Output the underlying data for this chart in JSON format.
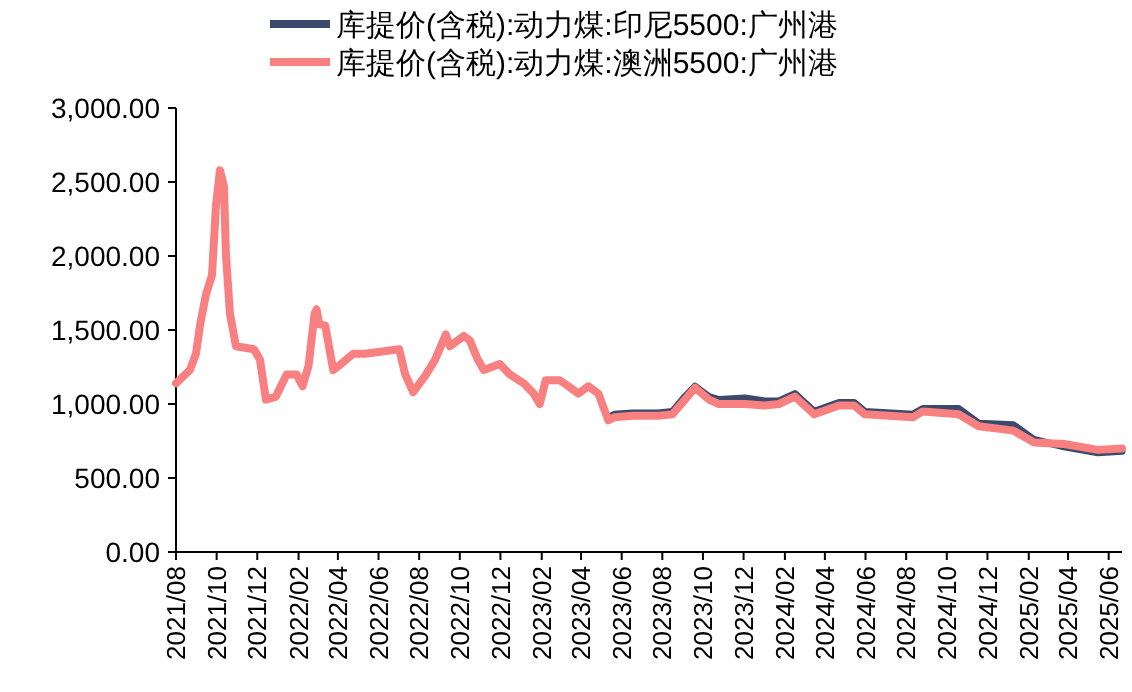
{
  "chart_data": {
    "type": "line",
    "x": [
      "2021-08-01",
      "2021-08-22",
      "2021-08-31",
      "2021-09-06",
      "2021-09-15",
      "2021-09-24",
      "2021-09-30",
      "2021-10-06",
      "2021-10-12",
      "2021-10-15",
      "2021-10-21",
      "2021-10-30",
      "2021-11-26",
      "2021-12-05",
      "2021-12-14",
      "2021-12-29",
      "2022-01-14",
      "2022-01-29",
      "2022-02-07",
      "2022-02-16",
      "2022-02-25",
      "2022-02-28",
      "2022-03-04",
      "2022-03-13",
      "2022-03-25",
      "2022-04-03",
      "2022-04-24",
      "2022-05-12",
      "2022-07-02",
      "2022-07-11",
      "2022-07-23",
      "2022-08-10",
      "2022-08-25",
      "2022-09-10",
      "2022-09-16",
      "2022-10-07",
      "2022-10-16",
      "2022-10-28",
      "2022-11-06",
      "2022-11-30",
      "2022-12-15",
      "2023-01-05",
      "2023-01-20",
      "2023-01-29",
      "2023-02-07",
      "2023-02-28",
      "2023-03-13",
      "2023-03-28",
      "2023-04-12",
      "2023-04-27",
      "2023-05-12",
      "2023-05-21",
      "2023-06-17",
      "2023-07-26",
      "2023-08-16",
      "2023-09-04",
      "2023-09-19",
      "2023-10-10",
      "2023-10-25",
      "2023-12-03",
      "2024-01-02",
      "2024-01-23",
      "2024-02-16",
      "2024-03-16",
      "2024-04-22",
      "2024-05-15",
      "2024-05-31",
      "2024-08-11",
      "2024-08-26",
      "2024-10-19",
      "2024-11-18",
      "2025-01-09",
      "2025-02-09",
      "2025-03-26",
      "2025-05-16",
      "2025-06-21"
    ],
    "series": [
      {
        "name": "库提价(含税):动力煤:印尼5500:广州港",
        "color": "#3b4a6b",
        "values": [
          null,
          null,
          null,
          null,
          null,
          null,
          null,
          null,
          null,
          null,
          null,
          null,
          null,
          null,
          null,
          null,
          null,
          null,
          null,
          null,
          null,
          null,
          null,
          null,
          null,
          null,
          null,
          null,
          null,
          null,
          null,
          null,
          null,
          null,
          null,
          null,
          null,
          null,
          null,
          null,
          null,
          null,
          null,
          null,
          null,
          null,
          null,
          null,
          null,
          null,
          910,
          930,
          940,
          940,
          950,
          1050,
          1120,
          1050,
          1030,
          1040,
          1020,
          1020,
          1070,
          950,
          1010,
          1010,
          950,
          930,
          970,
          970,
          870,
          860,
          760,
          710,
          670,
          680
        ]
      },
      {
        "name": "库提价(含税):动力煤:澳洲5500:广州港",
        "color": "#f88080",
        "values": [
          1140,
          1230,
          1340,
          1530,
          1740,
          1870,
          2340,
          2580,
          2470,
          2010,
          1610,
          1390,
          1370,
          1300,
          1030,
          1050,
          1200,
          1200,
          1120,
          1260,
          1610,
          1640,
          1540,
          1530,
          1230,
          1260,
          1340,
          1340,
          1370,
          1200,
          1080,
          1190,
          1300,
          1470,
          1390,
          1460,
          1430,
          1300,
          1230,
          1270,
          1200,
          1140,
          1070,
          1000,
          1160,
          1160,
          1120,
          1070,
          1120,
          1070,
          890,
          910,
          920,
          920,
          930,
          1030,
          1110,
          1030,
          1000,
          1000,
          990,
          1000,
          1050,
          930,
          990,
          990,
          930,
          910,
          950,
          930,
          850,
          820,
          740,
          730,
          690,
          700
        ]
      }
    ],
    "xlim": [
      "2021-08-01",
      "2025-06-21"
    ],
    "xticks": [
      {
        "value": "2021-08",
        "label": "2021/08"
      },
      {
        "value": "2021-10",
        "label": "2021/10"
      },
      {
        "value": "2021-12",
        "label": "2021/12"
      },
      {
        "value": "2022-02",
        "label": "2022/02"
      },
      {
        "value": "2022-04",
        "label": "2022/04"
      },
      {
        "value": "2022-06",
        "label": "2022/06"
      },
      {
        "value": "2022-08",
        "label": "2022/08"
      },
      {
        "value": "2022-10",
        "label": "2022/10"
      },
      {
        "value": "2022-12",
        "label": "2022/12"
      },
      {
        "value": "2023-02",
        "label": "2023/02"
      },
      {
        "value": "2023-04",
        "label": "2023/04"
      },
      {
        "value": "2023-06",
        "label": "2023/06"
      },
      {
        "value": "2023-08",
        "label": "2023/08"
      },
      {
        "value": "2023-10",
        "label": "2023/10"
      },
      {
        "value": "2023-12",
        "label": "2023/12"
      },
      {
        "value": "2024-02",
        "label": "2024/02"
      },
      {
        "value": "2024-04",
        "label": "2024/04"
      },
      {
        "value": "2024-06",
        "label": "2024/06"
      },
      {
        "value": "2024-08",
        "label": "2024/08"
      },
      {
        "value": "2024-10",
        "label": "2024/10"
      },
      {
        "value": "2024-12",
        "label": "2024/12"
      },
      {
        "value": "2025-02",
        "label": "2025/02"
      },
      {
        "value": "2025-04",
        "label": "2025/04"
      },
      {
        "value": "2025-06",
        "label": "2025/06"
      }
    ],
    "ylim": [
      0,
      3000
    ],
    "yticks": [
      {
        "value": 0,
        "label": "0.00"
      },
      {
        "value": 500,
        "label": "500.00"
      },
      {
        "value": 1000,
        "label": "1,000.00"
      },
      {
        "value": 1500,
        "label": "1,500.00"
      },
      {
        "value": 2000,
        "label": "2,000.00"
      },
      {
        "value": 2500,
        "label": "2,500.00"
      },
      {
        "value": 3000,
        "label": "3,000.00"
      }
    ],
    "grid": false,
    "legend": "top",
    "marker": "none",
    "line_style": "solid"
  }
}
